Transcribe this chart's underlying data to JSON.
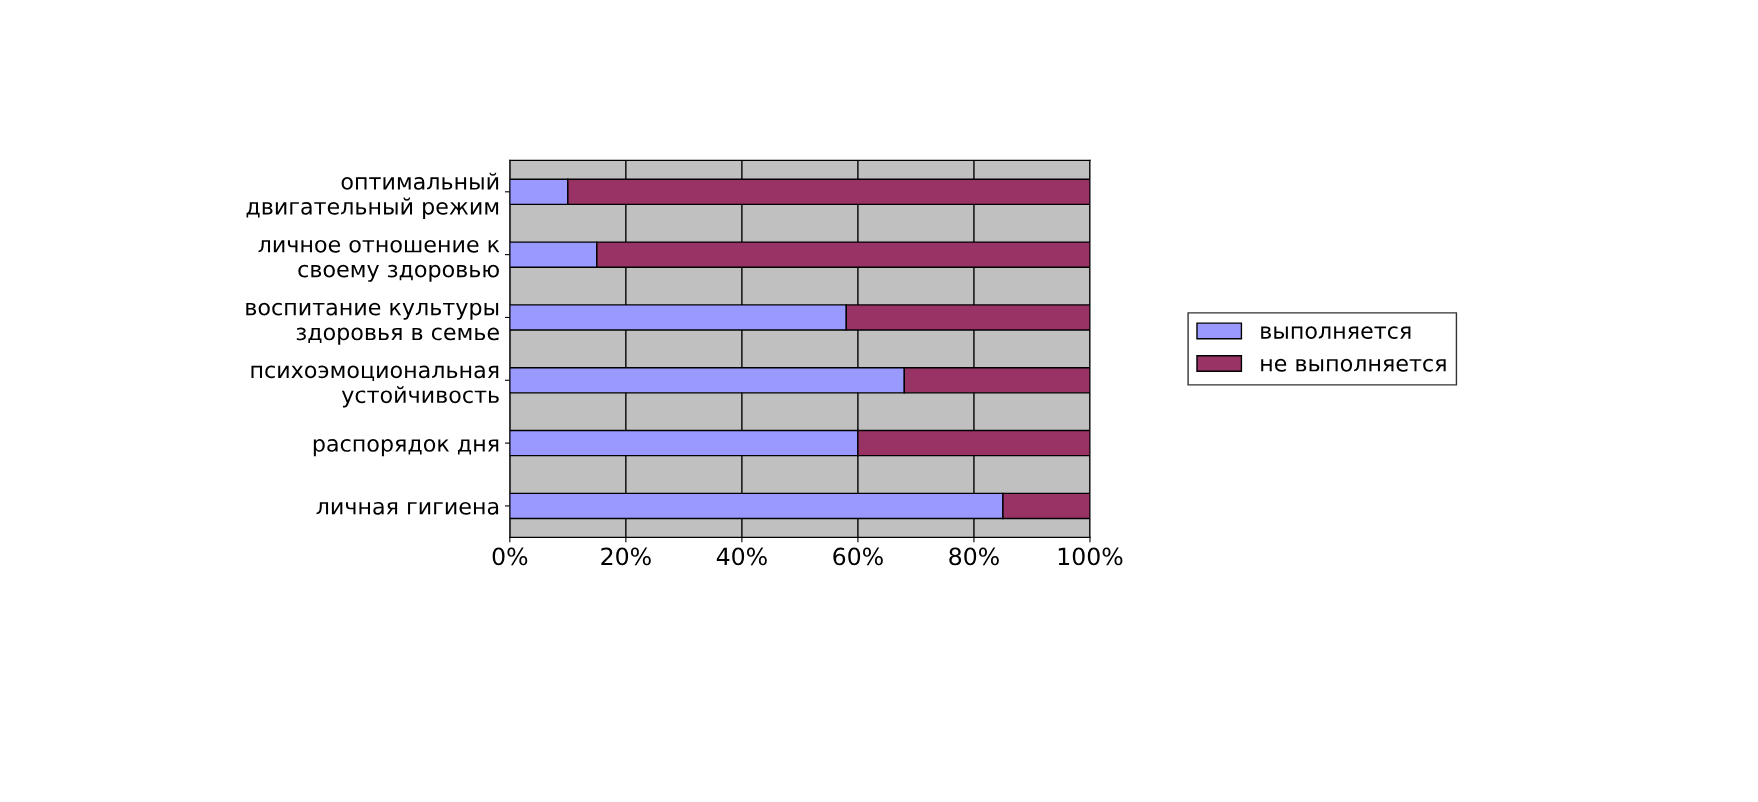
{
  "chart_data": {
    "type": "bar",
    "orientation": "horizontal",
    "stacked": true,
    "categories": [
      "оптимальный\nдвигательный режим",
      "личное отношение к\nсвоему здоровью",
      "воспитание культуры\nздоровья в семье",
      "психоэмоциональная\nустойчивость",
      "распорядок дня",
      "личная гигиена"
    ],
    "series": [
      {
        "name": "выполняется",
        "color": "#9999ff",
        "values": [
          10,
          15,
          58,
          68,
          60,
          85
        ]
      },
      {
        "name": "не выполняется",
        "color": "#993366",
        "values": [
          90,
          85,
          42,
          32,
          40,
          15
        ]
      }
    ],
    "xlim": [
      0,
      100
    ],
    "xticks": [
      {
        "value": 0,
        "label": "0%"
      },
      {
        "value": 20,
        "label": "20%"
      },
      {
        "value": 40,
        "label": "40%"
      },
      {
        "value": 60,
        "label": "60%"
      },
      {
        "value": 80,
        "label": "80%"
      },
      {
        "value": 100,
        "label": "100%"
      }
    ],
    "grid": "x",
    "legend": "right"
  }
}
